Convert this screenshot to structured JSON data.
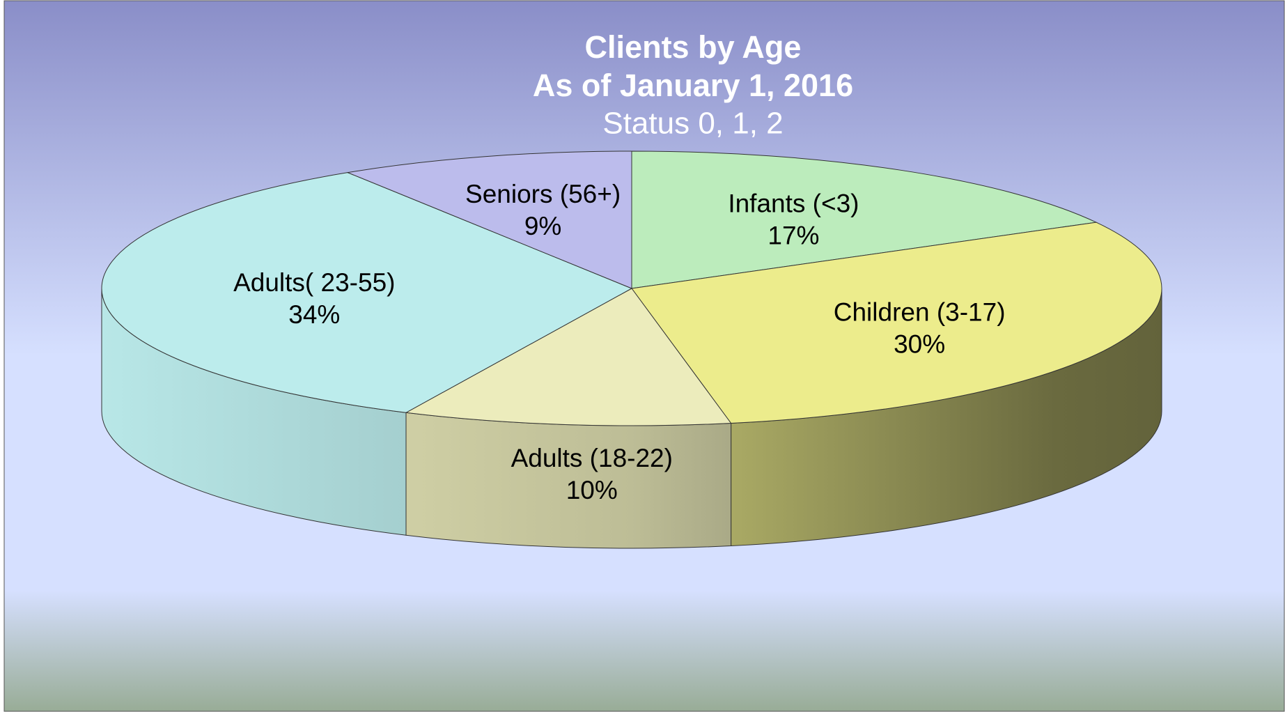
{
  "chart_data": {
    "type": "pie3d",
    "title": "Clients by Age",
    "subtitle": "As of January 1, 2016",
    "subtitle2": "Status 0, 1, 2",
    "categories": [
      "Infants (<3)",
      "Children (3-17)",
      "Adults (18-22)",
      "Adults( 23-55)",
      "Seniors (56+)"
    ],
    "values": [
      17,
      30,
      10,
      34,
      9
    ],
    "value_labels": [
      "17%",
      "30%",
      "10%",
      "34%",
      "9%"
    ],
    "colors": [
      "#bcecbc",
      "#ecec8c",
      "#ececbc",
      "#bcecec",
      "#bcbcec"
    ]
  }
}
